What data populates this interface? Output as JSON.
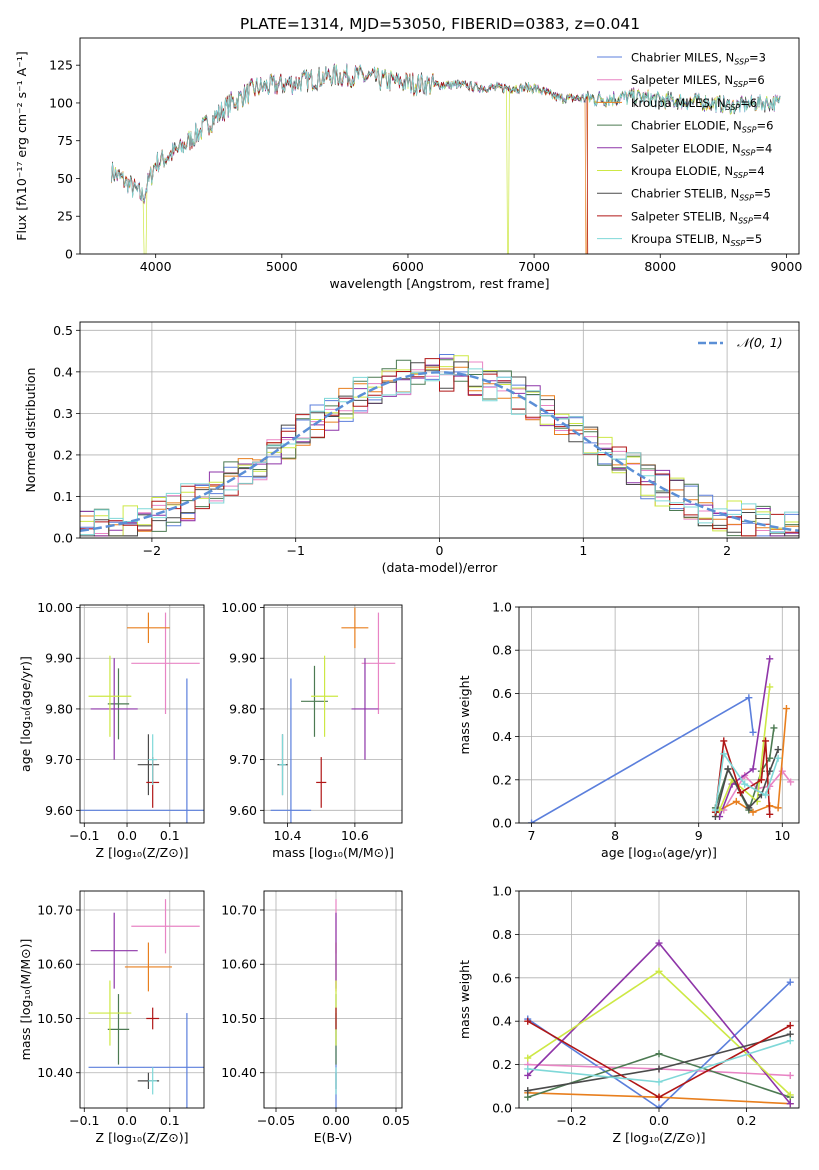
{
  "figure_title": "PLATE=1314, MJD=53050, FIBERID=0383, z=0.041",
  "colors": {
    "Chabrier MILES": "#5b7fdc",
    "Salpeter MILES": "#e884c4",
    "Kroupa MILES": "#e87f1e",
    "Chabrier ELODIE": "#4c7a52",
    "Salpeter ELODIE": "#8e35a8",
    "Kroupa ELODIE": "#cde845",
    "Chabrier STELIB": "#4a4a4a",
    "Salpeter STELIB": "#b01616",
    "Kroupa STELIB": "#7fd8d8",
    "normal": "#5b8fd6"
  },
  "chart_data": [
    {
      "id": "spectrum",
      "type": "line",
      "xlabel": "wavelength [Angstrom, rest frame]",
      "ylabel": "Flux [fλ10⁻¹⁷ erg cm⁻² s⁻¹ A⁻¹]",
      "xlim": [
        3400,
        9100
      ],
      "ylim": [
        0,
        143
      ],
      "xticks": [
        4000,
        5000,
        6000,
        7000,
        8000,
        9000
      ],
      "yticks": [
        0,
        25,
        50,
        75,
        100,
        125
      ],
      "legend_position": "top-right",
      "legend": [
        "Chabrier MILES, N_SSP=3",
        "Salpeter MILES, N_SSP=6",
        "Kroupa MILES, N_SSP=6",
        "Chabrier ELODIE, N_SSP=6",
        "Salpeter ELODIE, N_SSP=4",
        "Kroupa ELODIE, N_SSP=4",
        "Chabrier STELIB, N_SSP=5",
        "Salpeter STELIB, N_SSP=4",
        "Kroupa STELIB, N_SSP=5"
      ],
      "continuum": {
        "x": [
          3650,
          3800,
          3900,
          4000,
          4200,
          4400,
          4600,
          4800,
          5000,
          5200,
          5400,
          5600,
          5800,
          6000,
          6200,
          6400,
          6600,
          6800,
          7000,
          7200,
          7400,
          7600,
          7800,
          8000,
          8200,
          8400,
          8600,
          8800,
          8950
        ],
        "y": [
          55,
          45,
          38,
          60,
          70,
          85,
          100,
          110,
          112,
          115,
          118,
          118,
          115,
          113,
          112,
          112,
          110,
          110,
          110,
          103,
          103,
          103,
          104,
          102,
          101,
          100,
          98,
          100,
          100
        ]
      }
    },
    {
      "id": "residuals",
      "type": "line",
      "xlabel": "(data-model)/error",
      "ylabel": "Normed distribution",
      "xlim": [
        -2.5,
        2.5
      ],
      "ylim": [
        0,
        0.52
      ],
      "xticks": [
        -2,
        -1,
        0,
        1,
        2
      ],
      "yticks": [
        0.0,
        0.1,
        0.2,
        0.3,
        0.4,
        0.5
      ],
      "legend_position": "top-right",
      "legend": [
        "𝒩(0, 1)"
      ],
      "grid": true
    },
    {
      "id": "age-vs-Z",
      "type": "scatter",
      "xlabel": "Z [log₁₀(Z/Z⊙)]",
      "ylabel": "age  [log₁₀(age/yr)]",
      "xlim": [
        -0.11,
        0.18
      ],
      "ylim": [
        9.575,
        10.005
      ],
      "xticks": [
        -0.1,
        0.0,
        0.1
      ],
      "yticks": [
        9.6,
        9.7,
        9.8,
        9.9,
        10.0
      ],
      "grid": true,
      "points": [
        {
          "x": 0.14,
          "y": 9.6,
          "xerr": 0.25,
          "yerr": 0.26,
          "series": "Chabrier MILES"
        },
        {
          "x": 0.09,
          "y": 9.89,
          "xerr": 0.08,
          "yerr": 0.1,
          "series": "Salpeter MILES"
        },
        {
          "x": 0.05,
          "y": 9.96,
          "xerr": 0.05,
          "yerr": 0.03,
          "series": "Kroupa MILES"
        },
        {
          "x": -0.02,
          "y": 9.81,
          "xerr": 0.025,
          "yerr": 0.07,
          "series": "Chabrier ELODIE"
        },
        {
          "x": -0.03,
          "y": 9.8,
          "xerr": 0.055,
          "yerr": 0.1,
          "series": "Salpeter ELODIE"
        },
        {
          "x": -0.04,
          "y": 9.825,
          "xerr": 0.05,
          "yerr": 0.08,
          "series": "Kroupa ELODIE"
        },
        {
          "x": 0.05,
          "y": 9.69,
          "xerr": 0.025,
          "yerr": 0.06,
          "series": "Chabrier STELIB"
        },
        {
          "x": 0.06,
          "y": 9.655,
          "xerr": 0.015,
          "yerr": 0.05,
          "series": "Salpeter STELIB"
        },
        {
          "x": 0.06,
          "y": 9.7,
          "xerr": 0.01,
          "yerr": 0.05,
          "series": "Kroupa STELIB"
        }
      ]
    },
    {
      "id": "age-vs-mass",
      "type": "scatter",
      "xlabel": "mass [log₁₀(M/M⊙)]",
      "ylabel": "",
      "xlim": [
        10.33,
        10.74
      ],
      "ylim": [
        9.575,
        10.005
      ],
      "xticks": [
        10.4,
        10.6
      ],
      "yticks": [
        9.6,
        9.7,
        9.8,
        9.9,
        10.0
      ],
      "grid": true,
      "points": [
        {
          "x": 10.41,
          "y": 9.6,
          "xerr": 0.06,
          "yerr": 0.26,
          "series": "Chabrier MILES"
        },
        {
          "x": 10.67,
          "y": 9.89,
          "xerr": 0.05,
          "yerr": 0.1,
          "series": "Salpeter MILES"
        },
        {
          "x": 10.6,
          "y": 9.96,
          "xerr": 0.04,
          "yerr": 0.04,
          "series": "Kroupa MILES"
        },
        {
          "x": 10.48,
          "y": 9.815,
          "xerr": 0.04,
          "yerr": 0.07,
          "series": "Chabrier ELODIE"
        },
        {
          "x": 10.63,
          "y": 9.8,
          "xerr": 0.04,
          "yerr": 0.1,
          "series": "Salpeter ELODIE"
        },
        {
          "x": 10.51,
          "y": 9.825,
          "xerr": 0.04,
          "yerr": 0.08,
          "series": "Kroupa ELODIE"
        },
        {
          "x": 10.385,
          "y": 9.69,
          "xerr": 0.015,
          "yerr": 0.06,
          "series": "Chabrier STELIB"
        },
        {
          "x": 10.5,
          "y": 9.655,
          "xerr": 0.015,
          "yerr": 0.05,
          "series": "Salpeter STELIB"
        },
        {
          "x": 10.385,
          "y": 9.69,
          "xerr": 0.01,
          "yerr": 0.06,
          "series": "Kroupa STELIB"
        }
      ]
    },
    {
      "id": "mass-weight-vs-age",
      "type": "line",
      "xlabel": "age  [log₁₀(age/yr)]",
      "ylabel": "mass weight",
      "xlim": [
        6.85,
        10.2
      ],
      "ylim": [
        0,
        1.0
      ],
      "xticks": [
        7,
        8,
        9,
        10
      ],
      "yticks": [
        0.0,
        0.2,
        0.4,
        0.6,
        0.8,
        1.0
      ],
      "grid": true,
      "series": [
        {
          "series": "Chabrier MILES",
          "x": [
            7.0,
            9.6,
            9.65
          ],
          "y": [
            0.0,
            0.58,
            0.42
          ]
        },
        {
          "series": "Salpeter MILES",
          "x": [
            9.3,
            9.55,
            9.7,
            9.85,
            10.0,
            10.1
          ],
          "y": [
            0.06,
            0.22,
            0.16,
            0.17,
            0.24,
            0.19
          ]
        },
        {
          "series": "Kroupa MILES",
          "x": [
            9.2,
            9.45,
            9.65,
            9.85,
            9.95,
            10.05
          ],
          "y": [
            0.05,
            0.1,
            0.05,
            0.08,
            0.07,
            0.53
          ]
        },
        {
          "series": "Chabrier ELODIE",
          "x": [
            9.2,
            9.35,
            9.6,
            9.75,
            9.85,
            9.9
          ],
          "y": [
            0.07,
            0.25,
            0.06,
            0.24,
            0.3,
            0.44
          ]
        },
        {
          "series": "Salpeter ELODIE",
          "x": [
            9.25,
            9.4,
            9.65,
            9.85
          ],
          "y": [
            0.03,
            0.18,
            0.25,
            0.76
          ]
        },
        {
          "series": "Kroupa ELODIE",
          "x": [
            9.25,
            9.4,
            9.7,
            9.85
          ],
          "y": [
            0.06,
            0.2,
            0.1,
            0.63
          ]
        },
        {
          "series": "Chabrier STELIB",
          "x": [
            9.2,
            9.35,
            9.6,
            9.75,
            9.85,
            9.95
          ],
          "y": [
            0.03,
            0.25,
            0.07,
            0.13,
            0.24,
            0.34
          ]
        },
        {
          "series": "Salpeter STELIB",
          "x": [
            9.2,
            9.3,
            9.5,
            9.75,
            9.8,
            9.85
          ],
          "y": [
            0.05,
            0.38,
            0.14,
            0.2,
            0.38,
            0.04
          ]
        },
        {
          "series": "Kroupa STELIB",
          "x": [
            9.2,
            9.3,
            9.55,
            9.8,
            9.95
          ],
          "y": [
            0.06,
            0.32,
            0.18,
            0.13,
            0.3
          ]
        }
      ]
    },
    {
      "id": "mass-vs-Z",
      "type": "scatter",
      "xlabel": "Z [log₁₀(Z/Z⊙)]",
      "ylabel": "mass [log₁₀(M/M⊙)]",
      "xlim": [
        -0.11,
        0.18
      ],
      "ylim": [
        10.335,
        10.735
      ],
      "xticks": [
        -0.1,
        0.0,
        0.1
      ],
      "yticks": [
        10.4,
        10.5,
        10.6,
        10.7
      ],
      "grid": true,
      "points": [
        {
          "x": 0.14,
          "y": 10.41,
          "xerr": 0.23,
          "yerr": 0.1,
          "series": "Chabrier MILES"
        },
        {
          "x": 0.09,
          "y": 10.67,
          "xerr": 0.08,
          "yerr": 0.05,
          "series": "Salpeter MILES"
        },
        {
          "x": 0.05,
          "y": 10.595,
          "xerr": 0.055,
          "yerr": 0.045,
          "series": "Kroupa MILES"
        },
        {
          "x": -0.02,
          "y": 10.48,
          "xerr": 0.025,
          "yerr": 0.065,
          "series": "Chabrier ELODIE"
        },
        {
          "x": -0.03,
          "y": 10.625,
          "xerr": 0.055,
          "yerr": 0.07,
          "series": "Salpeter ELODIE"
        },
        {
          "x": -0.04,
          "y": 10.51,
          "xerr": 0.05,
          "yerr": 0.06,
          "series": "Kroupa ELODIE"
        },
        {
          "x": 0.05,
          "y": 10.385,
          "xerr": 0.025,
          "yerr": 0.015,
          "series": "Chabrier STELIB"
        },
        {
          "x": 0.06,
          "y": 10.5,
          "xerr": 0.015,
          "yerr": 0.02,
          "series": "Salpeter STELIB"
        },
        {
          "x": 0.06,
          "y": 10.385,
          "xerr": 0.01,
          "yerr": 0.025,
          "series": "Kroupa STELIB"
        }
      ]
    },
    {
      "id": "mass-vs-EBV",
      "type": "scatter",
      "xlabel": "E(B-V)",
      "ylabel": "",
      "xlim": [
        -0.06,
        0.055
      ],
      "ylim": [
        10.335,
        10.735
      ],
      "xticks": [
        -0.05,
        0.0,
        0.05
      ],
      "yticks": [
        10.4,
        10.5,
        10.6,
        10.7
      ],
      "grid": true,
      "points": [
        {
          "x": 0.0,
          "y": 10.41,
          "yerr": 0.1,
          "series": "Chabrier MILES"
        },
        {
          "x": 0.0,
          "y": 10.67,
          "yerr": 0.05,
          "series": "Salpeter MILES"
        },
        {
          "x": 0.0,
          "y": 10.595,
          "yerr": 0.045,
          "series": "Kroupa MILES"
        },
        {
          "x": 0.0,
          "y": 10.48,
          "yerr": 0.065,
          "series": "Chabrier ELODIE"
        },
        {
          "x": 0.0,
          "y": 10.625,
          "yerr": 0.07,
          "series": "Salpeter ELODIE"
        },
        {
          "x": 0.0,
          "y": 10.51,
          "yerr": 0.06,
          "series": "Kroupa ELODIE"
        },
        {
          "x": 0.0,
          "y": 10.385,
          "yerr": 0.015,
          "series": "Chabrier STELIB"
        },
        {
          "x": 0.0,
          "y": 10.5,
          "yerr": 0.02,
          "series": "Salpeter STELIB"
        },
        {
          "x": 0.0,
          "y": 10.385,
          "yerr": 0.025,
          "series": "Kroupa STELIB"
        }
      ]
    },
    {
      "id": "mass-weight-vs-Z",
      "type": "line",
      "xlabel": "Z [log₁₀(Z/Z⊙)]",
      "ylabel": "mass weight",
      "xlim": [
        -0.32,
        0.32
      ],
      "ylim": [
        0,
        1.0
      ],
      "xticks": [
        -0.2,
        0.0,
        0.2
      ],
      "yticks": [
        0.0,
        0.2,
        0.4,
        0.6,
        0.8,
        1.0
      ],
      "grid": true,
      "series": [
        {
          "series": "Chabrier MILES",
          "x": [
            -0.3,
            0.0,
            0.3
          ],
          "y": [
            0.41,
            0.0,
            0.58
          ]
        },
        {
          "series": "Salpeter MILES",
          "x": [
            -0.3,
            0.0,
            0.3
          ],
          "y": [
            0.2,
            0.18,
            0.15
          ]
        },
        {
          "series": "Kroupa MILES",
          "x": [
            -0.3,
            0.0,
            0.3
          ],
          "y": [
            0.07,
            0.05,
            0.02
          ]
        },
        {
          "series": "Chabrier ELODIE",
          "x": [
            -0.3,
            0.0,
            0.3
          ],
          "y": [
            0.05,
            0.25,
            0.05
          ]
        },
        {
          "series": "Salpeter ELODIE",
          "x": [
            -0.3,
            0.0,
            0.3
          ],
          "y": [
            0.15,
            0.76,
            0.02
          ]
        },
        {
          "series": "Kroupa ELODIE",
          "x": [
            -0.3,
            0.0,
            0.3
          ],
          "y": [
            0.23,
            0.63,
            0.06
          ]
        },
        {
          "series": "Chabrier STELIB",
          "x": [
            -0.3,
            0.0,
            0.3
          ],
          "y": [
            0.08,
            0.18,
            0.34
          ]
        },
        {
          "series": "Salpeter STELIB",
          "x": [
            -0.3,
            0.0,
            0.3
          ],
          "y": [
            0.4,
            0.05,
            0.38
          ]
        },
        {
          "series": "Kroupa STELIB",
          "x": [
            -0.3,
            0.0,
            0.3
          ],
          "y": [
            0.18,
            0.12,
            0.31
          ]
        }
      ]
    }
  ]
}
